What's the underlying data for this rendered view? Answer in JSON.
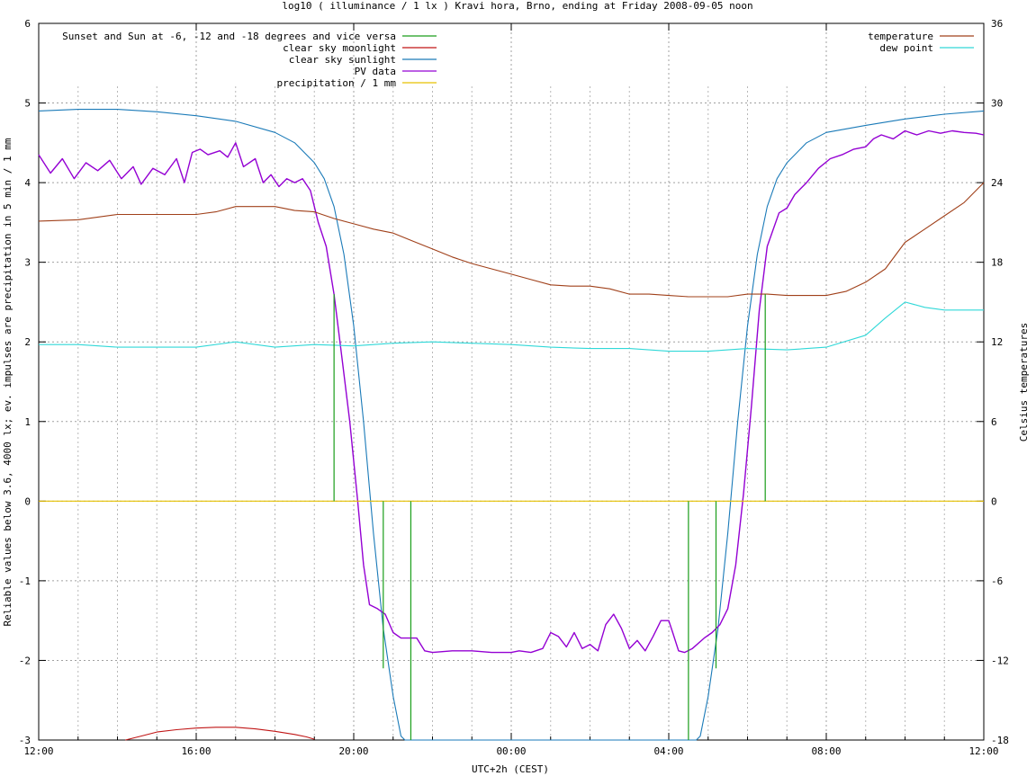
{
  "chart_data": {
    "type": "line",
    "title": "log10 ( illuminance / 1 lx ) Kravi hora, Brno, ending at Friday 2008-09-05 noon",
    "xlabel": "UTC+2h (CEST)",
    "ylabel": "Reliable values below 3.6, 4000 lx; ev. impulses are precipitation in 5 min / 1 mm",
    "y2label": "Celsius temperatures",
    "xlim": [
      0,
      24
    ],
    "xticks": [
      {
        "x": 0,
        "label": "12:00"
      },
      {
        "x": 4,
        "label": "16:00"
      },
      {
        "x": 8,
        "label": "20:00"
      },
      {
        "x": 12,
        "label": "00:00"
      },
      {
        "x": 16,
        "label": "04:00"
      },
      {
        "x": 20,
        "label": "08:00"
      },
      {
        "x": 24,
        "label": "12:00"
      }
    ],
    "minor_grid_x": [
      1,
      2,
      3,
      5,
      6,
      7,
      9,
      10,
      11,
      13,
      14,
      15,
      17,
      18,
      19,
      21,
      22,
      23
    ],
    "ylim": [
      -3,
      6
    ],
    "yticks": [
      {
        "v": -3,
        "label": "-3"
      },
      {
        "v": -2,
        "label": "-2"
      },
      {
        "v": -1,
        "label": "-1"
      },
      {
        "v": 0,
        "label": "0"
      },
      {
        "v": 1,
        "label": "1"
      },
      {
        "v": 2,
        "label": "2"
      },
      {
        "v": 3,
        "label": "3"
      },
      {
        "v": 4,
        "label": "4"
      },
      {
        "v": 5,
        "label": "5"
      },
      {
        "v": 6,
        "label": "6"
      }
    ],
    "y2lim": [
      -18,
      36
    ],
    "y2ticks": [
      {
        "v": -18,
        "label": "-18"
      },
      {
        "v": -12,
        "label": "-12"
      },
      {
        "v": -6,
        "label": "-6"
      },
      {
        "v": 0,
        "label": "0"
      },
      {
        "v": 6,
        "label": "6"
      },
      {
        "v": 12,
        "label": "12"
      },
      {
        "v": 18,
        "label": "18"
      },
      {
        "v": 24,
        "label": "24"
      },
      {
        "v": 30,
        "label": "30"
      },
      {
        "v": 36,
        "label": "36"
      }
    ],
    "grid": true,
    "legend_left": {
      "placement": "top-left",
      "entries": [
        {
          "label": "Sunset and Sun at -6, -12 and -18 degrees and vice versa",
          "color": "#1a9e1a"
        },
        {
          "label": "clear sky moonlight",
          "color": "#c01515"
        },
        {
          "label": "clear sky sunlight",
          "color": "#1a7ab8"
        },
        {
          "label": "PV data",
          "color": "#9400d3"
        },
        {
          "label": "precipitation / 1 mm",
          "color": "#e6c000"
        }
      ]
    },
    "legend_right": {
      "placement": "top-right",
      "entries": [
        {
          "label": "temperature",
          "color": "#a0401a"
        },
        {
          "label": "dew point",
          "color": "#30d8d8"
        }
      ]
    },
    "sun_events": {
      "color": "#1a9e1a",
      "impulses": [
        {
          "x": 7.5,
          "top": 2.6
        },
        {
          "x": 8.75,
          "top": -2.1
        },
        {
          "x": 9.45,
          "top": -3
        },
        {
          "x": 16.5,
          "top": -3
        },
        {
          "x": 17.2,
          "top": -2.1
        },
        {
          "x": 18.45,
          "top": 2.6
        }
      ]
    },
    "series": [
      {
        "name": "clear sky sunlight",
        "axis": "y",
        "color": "#1a7ab8",
        "points": [
          [
            0,
            4.9
          ],
          [
            1,
            4.92
          ],
          [
            2,
            4.92
          ],
          [
            3,
            4.89
          ],
          [
            4,
            4.84
          ],
          [
            5,
            4.77
          ],
          [
            6,
            4.63
          ],
          [
            6.5,
            4.5
          ],
          [
            7,
            4.25
          ],
          [
            7.25,
            4.05
          ],
          [
            7.5,
            3.7
          ],
          [
            7.75,
            3.1
          ],
          [
            8,
            2.2
          ],
          [
            8.25,
            1.0
          ],
          [
            8.5,
            -0.4
          ],
          [
            8.75,
            -1.6
          ],
          [
            9,
            -2.45
          ],
          [
            9.2,
            -2.95
          ],
          [
            9.3,
            -3
          ],
          [
            16.7,
            -3
          ],
          [
            16.8,
            -2.95
          ],
          [
            17,
            -2.45
          ],
          [
            17.25,
            -1.6
          ],
          [
            17.5,
            -0.4
          ],
          [
            17.75,
            1.0
          ],
          [
            18,
            2.2
          ],
          [
            18.25,
            3.1
          ],
          [
            18.5,
            3.7
          ],
          [
            18.75,
            4.05
          ],
          [
            19,
            4.25
          ],
          [
            19.5,
            4.5
          ],
          [
            20,
            4.63
          ],
          [
            21,
            4.72
          ],
          [
            22,
            4.8
          ],
          [
            23,
            4.86
          ],
          [
            24,
            4.9
          ]
        ]
      },
      {
        "name": "PV data",
        "axis": "y",
        "color": "#9400d3",
        "points": [
          [
            0,
            4.35
          ],
          [
            0.3,
            4.12
          ],
          [
            0.6,
            4.3
          ],
          [
            0.9,
            4.05
          ],
          [
            1.2,
            4.25
          ],
          [
            1.5,
            4.15
          ],
          [
            1.8,
            4.28
          ],
          [
            2.1,
            4.05
          ],
          [
            2.4,
            4.2
          ],
          [
            2.6,
            3.98
          ],
          [
            2.9,
            4.18
          ],
          [
            3.2,
            4.1
          ],
          [
            3.5,
            4.3
          ],
          [
            3.7,
            4.0
          ],
          [
            3.9,
            4.38
          ],
          [
            4.1,
            4.42
          ],
          [
            4.3,
            4.35
          ],
          [
            4.6,
            4.4
          ],
          [
            4.8,
            4.32
          ],
          [
            5,
            4.5
          ],
          [
            5.2,
            4.2
          ],
          [
            5.5,
            4.3
          ],
          [
            5.7,
            4.0
          ],
          [
            5.9,
            4.1
          ],
          [
            6.1,
            3.95
          ],
          [
            6.3,
            4.05
          ],
          [
            6.5,
            4.0
          ],
          [
            6.7,
            4.05
          ],
          [
            6.9,
            3.9
          ],
          [
            7.1,
            3.5
          ],
          [
            7.3,
            3.2
          ],
          [
            7.5,
            2.6
          ],
          [
            7.7,
            1.8
          ],
          [
            7.9,
            1.0
          ],
          [
            8.1,
            0.0
          ],
          [
            8.25,
            -0.8
          ],
          [
            8.4,
            -1.3
          ],
          [
            8.6,
            -1.35
          ],
          [
            8.8,
            -1.42
          ],
          [
            9.0,
            -1.65
          ],
          [
            9.2,
            -1.72
          ],
          [
            9.4,
            -1.72
          ],
          [
            9.6,
            -1.72
          ],
          [
            9.8,
            -1.88
          ],
          [
            10,
            -1.9
          ],
          [
            10.5,
            -1.88
          ],
          [
            11,
            -1.88
          ],
          [
            11.5,
            -1.9
          ],
          [
            12,
            -1.9
          ],
          [
            12.2,
            -1.88
          ],
          [
            12.5,
            -1.9
          ],
          [
            12.8,
            -1.85
          ],
          [
            13,
            -1.65
          ],
          [
            13.2,
            -1.7
          ],
          [
            13.4,
            -1.83
          ],
          [
            13.6,
            -1.65
          ],
          [
            13.8,
            -1.85
          ],
          [
            14,
            -1.8
          ],
          [
            14.2,
            -1.88
          ],
          [
            14.4,
            -1.55
          ],
          [
            14.6,
            -1.42
          ],
          [
            14.8,
            -1.6
          ],
          [
            15,
            -1.85
          ],
          [
            15.2,
            -1.75
          ],
          [
            15.4,
            -1.88
          ],
          [
            15.6,
            -1.7
          ],
          [
            15.8,
            -1.5
          ],
          [
            16,
            -1.5
          ],
          [
            16.1,
            -1.65
          ],
          [
            16.25,
            -1.88
          ],
          [
            16.4,
            -1.9
          ],
          [
            16.6,
            -1.85
          ],
          [
            16.9,
            -1.72
          ],
          [
            17.1,
            -1.65
          ],
          [
            17.3,
            -1.55
          ],
          [
            17.5,
            -1.35
          ],
          [
            17.7,
            -0.8
          ],
          [
            17.9,
            0.1
          ],
          [
            18.1,
            1.2
          ],
          [
            18.3,
            2.4
          ],
          [
            18.5,
            3.2
          ],
          [
            18.8,
            3.62
          ],
          [
            19,
            3.68
          ],
          [
            19.2,
            3.85
          ],
          [
            19.5,
            4.0
          ],
          [
            19.8,
            4.18
          ],
          [
            20.1,
            4.3
          ],
          [
            20.4,
            4.35
          ],
          [
            20.7,
            4.42
          ],
          [
            21,
            4.45
          ],
          [
            21.2,
            4.55
          ],
          [
            21.4,
            4.6
          ],
          [
            21.7,
            4.55
          ],
          [
            22,
            4.65
          ],
          [
            22.3,
            4.6
          ],
          [
            22.6,
            4.65
          ],
          [
            22.9,
            4.62
          ],
          [
            23.2,
            4.65
          ],
          [
            23.5,
            4.63
          ],
          [
            23.8,
            4.62
          ],
          [
            24,
            4.6
          ]
        ]
      },
      {
        "name": "clear sky moonlight",
        "axis": "y",
        "color": "#c01515",
        "points": [
          [
            2.2,
            -3
          ],
          [
            2.6,
            -2.95
          ],
          [
            3,
            -2.9
          ],
          [
            3.5,
            -2.87
          ],
          [
            4,
            -2.85
          ],
          [
            4.5,
            -2.84
          ],
          [
            5,
            -2.84
          ],
          [
            5.5,
            -2.86
          ],
          [
            6,
            -2.89
          ],
          [
            6.5,
            -2.93
          ],
          [
            6.8,
            -2.96
          ],
          [
            7.0,
            -2.99
          ]
        ]
      },
      {
        "name": "precipitation / 1 mm",
        "axis": "y",
        "color": "#e6c000",
        "points": [
          [
            0,
            0
          ],
          [
            24,
            0
          ]
        ]
      },
      {
        "name": "temperature",
        "axis": "y2",
        "color": "#a0401a",
        "points": [
          [
            0,
            21.1
          ],
          [
            1,
            21.2
          ],
          [
            2,
            21.6
          ],
          [
            3,
            21.6
          ],
          [
            4,
            21.6
          ],
          [
            4.5,
            21.8
          ],
          [
            5,
            22.2
          ],
          [
            6,
            22.2
          ],
          [
            6.5,
            21.9
          ],
          [
            7,
            21.8
          ],
          [
            7.5,
            21.3
          ],
          [
            8,
            20.9
          ],
          [
            8.5,
            20.5
          ],
          [
            9,
            20.2
          ],
          [
            9.5,
            19.6
          ],
          [
            10,
            19.0
          ],
          [
            10.5,
            18.4
          ],
          [
            11,
            17.9
          ],
          [
            11.5,
            17.5
          ],
          [
            12,
            17.1
          ],
          [
            12.5,
            16.7
          ],
          [
            13,
            16.3
          ],
          [
            13.5,
            16.2
          ],
          [
            14,
            16.2
          ],
          [
            14.5,
            16.0
          ],
          [
            15,
            15.6
          ],
          [
            15.5,
            15.6
          ],
          [
            16,
            15.5
          ],
          [
            16.5,
            15.4
          ],
          [
            17,
            15.4
          ],
          [
            17.5,
            15.4
          ],
          [
            18,
            15.6
          ],
          [
            18.5,
            15.6
          ],
          [
            19,
            15.5
          ],
          [
            20,
            15.5
          ],
          [
            20.5,
            15.8
          ],
          [
            21,
            16.5
          ],
          [
            21.5,
            17.5
          ],
          [
            22,
            19.5
          ],
          [
            22.5,
            20.5
          ],
          [
            23,
            21.5
          ],
          [
            23.5,
            22.5
          ],
          [
            24,
            24.0
          ]
        ]
      },
      {
        "name": "dew point",
        "axis": "y2",
        "color": "#30d8d8",
        "points": [
          [
            0,
            11.8
          ],
          [
            1,
            11.8
          ],
          [
            2,
            11.6
          ],
          [
            3,
            11.6
          ],
          [
            4,
            11.6
          ],
          [
            5,
            12.0
          ],
          [
            6,
            11.6
          ],
          [
            7,
            11.8
          ],
          [
            8,
            11.7
          ],
          [
            9,
            11.9
          ],
          [
            10,
            12.0
          ],
          [
            11,
            11.9
          ],
          [
            12,
            11.8
          ],
          [
            13,
            11.6
          ],
          [
            14,
            11.5
          ],
          [
            15,
            11.5
          ],
          [
            16,
            11.3
          ],
          [
            17,
            11.3
          ],
          [
            18,
            11.5
          ],
          [
            19,
            11.4
          ],
          [
            20,
            11.6
          ],
          [
            21,
            12.5
          ],
          [
            21.5,
            13.8
          ],
          [
            22,
            15.0
          ],
          [
            22.5,
            14.6
          ],
          [
            23,
            14.4
          ],
          [
            23.5,
            14.4
          ],
          [
            24,
            14.4
          ]
        ]
      }
    ]
  }
}
